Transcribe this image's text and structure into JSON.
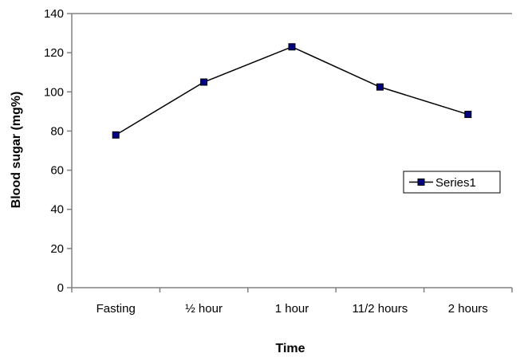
{
  "chart_data": {
    "type": "line",
    "title": "",
    "xlabel": "Time",
    "ylabel": "Blood sugar (mg%)",
    "categories": [
      "Fasting",
      "½ hour",
      "1 hour",
      "11/2 hours",
      "2 hours"
    ],
    "series": [
      {
        "name": "Series1",
        "values": [
          78,
          105,
          123,
          102.5,
          88.5
        ],
        "color": "#000080",
        "marker": "square"
      }
    ],
    "ylim": [
      0,
      140
    ],
    "yticks": [
      0,
      20,
      40,
      60,
      80,
      100,
      120,
      140
    ],
    "grid": false,
    "legend_position": "right",
    "axis_color": "#808080",
    "line_color": "#000000"
  }
}
